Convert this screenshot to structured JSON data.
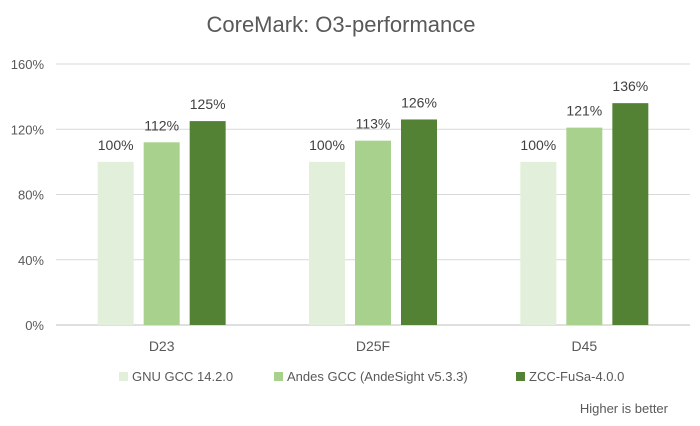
{
  "chart_data": {
    "type": "bar",
    "title": "CoreMark: O3-performance",
    "categories": [
      "D23",
      "D25F",
      "D45"
    ],
    "series": [
      {
        "name": "GNU GCC 14.2.0",
        "color": "#e2efda",
        "values": [
          100,
          100,
          100
        ],
        "labels": [
          "100%",
          "100%",
          "100%"
        ]
      },
      {
        "name": "Andes GCC (AndeSight v5.3.3)",
        "color": "#a9d18e",
        "values": [
          112,
          113,
          121
        ],
        "labels": [
          "112%",
          "113%",
          "121%"
        ]
      },
      {
        "name": "ZCC-FuSa-4.0.0",
        "color": "#548235",
        "values": [
          125,
          126,
          136
        ],
        "labels": [
          "125%",
          "126%",
          "136%"
        ]
      }
    ],
    "ylim": [
      0,
      160
    ],
    "yticks": [
      0,
      40,
      80,
      120,
      160
    ],
    "ytick_labels": [
      "0%",
      "40%",
      "80%",
      "120%",
      "160%"
    ],
    "grid": true,
    "legend_position": "bottom",
    "xlabel": "",
    "ylabel": "",
    "annotation": "Higher is better"
  }
}
